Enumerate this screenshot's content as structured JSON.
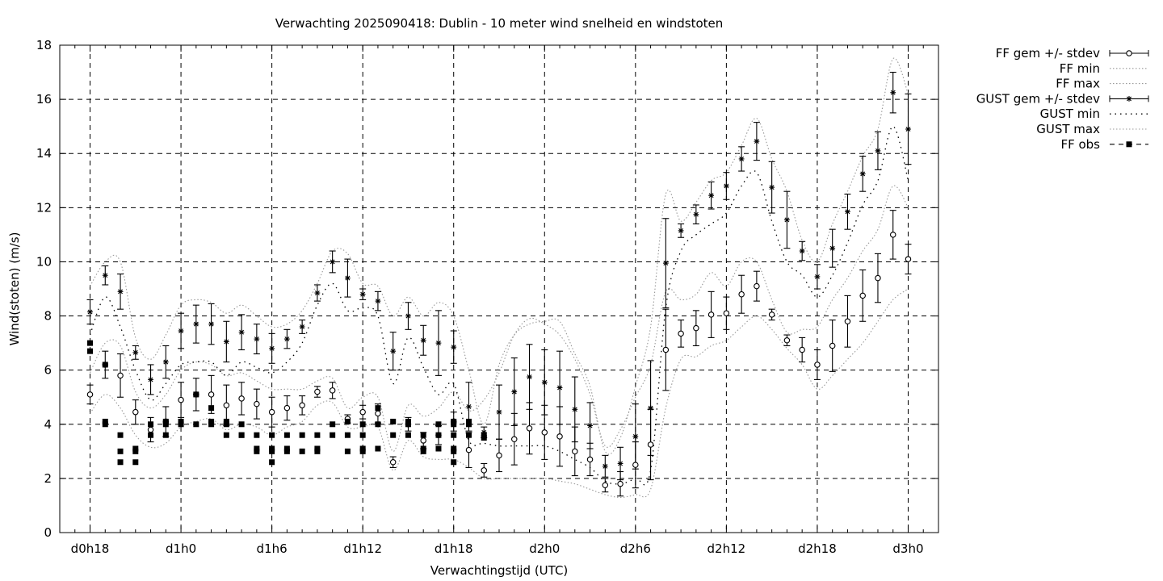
{
  "chart_data": {
    "type": "line",
    "title": "Verwachting 2025090418: Dublin - 10 meter wind snelheid en windstoten",
    "xlabel": "Verwachtingstijd (UTC)",
    "ylabel": "Wind(stoten) (m/s)",
    "xlim": [
      -2,
      56
    ],
    "ylim": [
      0,
      18
    ],
    "x_unit": "hours since d0h18",
    "x_ticks": [
      {
        "at": 0,
        "label": "d0h18"
      },
      {
        "at": 6,
        "label": "d1h0"
      },
      {
        "at": 12,
        "label": "d1h6"
      },
      {
        "at": 18,
        "label": "d1h12"
      },
      {
        "at": 24,
        "label": "d1h18"
      },
      {
        "at": 30,
        "label": "d2h0"
      },
      {
        "at": 36,
        "label": "d2h6"
      },
      {
        "at": 42,
        "label": "d2h12"
      },
      {
        "at": 48,
        "label": "d2h18"
      },
      {
        "at": 54,
        "label": "d3h0"
      }
    ],
    "y_ticks": [
      0,
      2,
      4,
      6,
      8,
      10,
      12,
      14,
      16,
      18
    ],
    "grid": true,
    "legend_position": "outside-right-top",
    "legend": [
      {
        "label": "FF gem +/- stdev",
        "key": "ff_mean"
      },
      {
        "label": "FF min",
        "key": "ff_min"
      },
      {
        "label": "FF max",
        "key": "ff_max"
      },
      {
        "label": "GUST gem +/- stdev",
        "key": "gust_mean"
      },
      {
        "label": "GUST min",
        "key": "gust_min"
      },
      {
        "label": "GUST max",
        "key": "gust_max"
      },
      {
        "label": "FF obs",
        "key": "ff_obs"
      }
    ],
    "series": {
      "x": [
        0,
        1,
        2,
        3,
        4,
        5,
        6,
        7,
        8,
        9,
        10,
        11,
        12,
        13,
        14,
        15,
        16,
        17,
        18,
        19,
        20,
        21,
        22,
        23,
        24,
        25,
        26,
        27,
        28,
        29,
        30,
        31,
        32,
        33,
        34,
        35,
        36,
        37,
        38,
        39,
        40,
        41,
        42,
        43,
        44,
        45,
        46,
        47,
        48,
        49,
        50,
        51,
        52,
        53,
        54
      ],
      "ff_mean": [
        5.1,
        6.2,
        5.8,
        4.45,
        3.8,
        4.1,
        4.9,
        5.1,
        5.1,
        4.7,
        4.95,
        4.75,
        4.45,
        4.6,
        4.7,
        5.2,
        5.25,
        4.2,
        4.45,
        4.4,
        2.6,
        4.0,
        3.4,
        3.6,
        4.1,
        3.05,
        2.3,
        2.85,
        3.45,
        3.85,
        3.7,
        3.55,
        3.0,
        2.7,
        1.75,
        1.8,
        2.5,
        3.25,
        6.75,
        7.35,
        7.55,
        8.05,
        8.1,
        8.8,
        9.1,
        8.05,
        7.1,
        6.75,
        6.2,
        6.9,
        7.8,
        8.75,
        9.4,
        11.0,
        10.1
      ],
      "ff_sd": [
        0.35,
        0.5,
        0.8,
        0.45,
        0.45,
        0.55,
        0.65,
        0.6,
        0.7,
        0.75,
        0.6,
        0.55,
        0.55,
        0.45,
        0.35,
        0.2,
        0.3,
        0.15,
        0.25,
        0.35,
        0.2,
        0.25,
        0.3,
        0.35,
        0.35,
        0.65,
        0.25,
        0.6,
        0.95,
        0.95,
        1.0,
        1.1,
        0.9,
        0.6,
        0.25,
        0.45,
        0.85,
        1.3,
        1.5,
        0.5,
        0.65,
        0.85,
        0.6,
        0.7,
        0.55,
        0.2,
        0.2,
        0.45,
        0.55,
        0.95,
        0.95,
        0.95,
        0.9,
        0.9,
        0.55
      ],
      "ff_min": [
        4.4,
        5.1,
        4.6,
        3.6,
        3.15,
        3.3,
        3.9,
        4.1,
        4.2,
        3.8,
        4.0,
        3.9,
        3.6,
        3.9,
        4.1,
        4.7,
        4.8,
        3.9,
        3.9,
        3.9,
        2.3,
        3.4,
        2.8,
        2.7,
        2.7,
        2.4,
        2.0,
        2.0,
        2.0,
        2.0,
        2.0,
        1.9,
        1.8,
        1.6,
        1.4,
        1.3,
        1.4,
        1.6,
        4.6,
        6.4,
        6.5,
        6.9,
        7.1,
        7.6,
        8.0,
        7.5,
        6.8,
        6.2,
        5.3,
        5.8,
        6.4,
        7.0,
        7.8,
        8.6,
        9.0
      ],
      "ff_max": [
        5.9,
        7.0,
        6.9,
        5.2,
        4.6,
        5.1,
        6.0,
        6.3,
        6.2,
        5.8,
        5.9,
        5.6,
        5.3,
        5.3,
        5.3,
        5.6,
        5.7,
        4.6,
        5.0,
        5.0,
        3.0,
        4.7,
        4.3,
        4.6,
        5.2,
        4.5,
        4.9,
        5.9,
        7.3,
        7.9,
        7.7,
        7.3,
        6.4,
        5.1,
        3.2,
        3.8,
        5.0,
        6.2,
        8.9,
        8.6,
        8.8,
        9.6,
        9.1,
        10.0,
        10.0,
        8.6,
        7.4,
        7.5,
        7.6,
        8.6,
        9.4,
        10.4,
        11.2,
        12.8,
        12.0
      ],
      "gust_mean": [
        8.15,
        9.5,
        8.9,
        6.65,
        5.65,
        6.3,
        7.45,
        7.7,
        7.7,
        7.05,
        7.4,
        7.15,
        6.8,
        7.15,
        7.6,
        8.85,
        10.0,
        9.4,
        8.8,
        8.55,
        6.7,
        8.0,
        7.1,
        7.0,
        6.85,
        4.65,
        3.7,
        4.45,
        5.2,
        5.75,
        5.55,
        5.35,
        4.55,
        3.95,
        2.45,
        2.55,
        3.55,
        4.6,
        9.95,
        11.15,
        11.75,
        12.45,
        12.8,
        13.8,
        14.45,
        12.75,
        11.55,
        10.4,
        9.45,
        10.5,
        11.85,
        13.25,
        14.1,
        16.25,
        14.9
      ],
      "gust_sd": [
        0.45,
        0.35,
        0.65,
        0.25,
        0.55,
        0.6,
        0.65,
        0.7,
        0.75,
        0.75,
        0.65,
        0.55,
        0.55,
        0.35,
        0.25,
        0.3,
        0.4,
        0.7,
        0.2,
        0.35,
        0.7,
        0.5,
        0.55,
        1.2,
        0.6,
        0.9,
        0.2,
        1.0,
        1.25,
        1.2,
        1.2,
        1.35,
        1.2,
        0.85,
        0.4,
        0.6,
        1.2,
        1.75,
        1.65,
        0.25,
        0.35,
        0.5,
        0.5,
        0.45,
        0.7,
        0.95,
        1.05,
        0.35,
        0.45,
        0.7,
        0.65,
        0.65,
        0.7,
        0.75,
        1.3
      ],
      "gust_min": [
        7.3,
        8.7,
        7.6,
        6.0,
        4.9,
        5.5,
        6.2,
        6.3,
        6.3,
        5.8,
        6.3,
        6.1,
        5.9,
        6.3,
        7.0,
        8.4,
        9.2,
        8.2,
        8.3,
        8.0,
        5.5,
        7.2,
        6.1,
        5.1,
        5.5,
        3.4,
        3.3,
        3.2,
        3.2,
        3.2,
        3.2,
        3.0,
        2.7,
        2.4,
        1.9,
        1.8,
        2.0,
        2.3,
        8.3,
        10.4,
        11.0,
        11.4,
        11.8,
        12.8,
        13.3,
        11.5,
        10.0,
        9.5,
        8.7,
        9.5,
        10.7,
        12.1,
        13.0,
        15.0,
        13.0
      ],
      "gust_max": [
        9.1,
        10.0,
        10.0,
        7.2,
        6.4,
        7.3,
        8.4,
        8.6,
        8.5,
        8.1,
        8.4,
        8.0,
        7.6,
        7.7,
        8.2,
        9.2,
        10.4,
        10.3,
        9.2,
        9.1,
        8.0,
        8.7,
        8.0,
        8.5,
        8.0,
        6.0,
        4.0,
        6.2,
        7.3,
        7.7,
        7.8,
        7.8,
        6.6,
        5.4,
        3.0,
        3.5,
        5.4,
        7.6,
        12.5,
        11.5,
        12.2,
        13.0,
        13.3,
        14.3,
        15.3,
        13.8,
        12.6,
        10.8,
        10.0,
        11.4,
        12.6,
        13.9,
        14.9,
        17.5,
        16.2
      ]
    },
    "ff_obs": {
      "x": [
        0,
        0,
        1,
        1,
        1,
        2,
        2,
        2,
        3,
        3,
        3,
        4,
        4,
        5,
        5,
        5,
        6,
        6,
        7,
        7,
        8,
        8,
        8,
        9,
        9,
        9,
        10,
        10,
        10,
        11,
        11,
        11,
        12,
        12,
        12,
        12,
        13,
        13,
        13,
        14,
        14,
        15,
        15,
        15,
        16,
        16,
        17,
        17,
        17,
        18,
        18,
        18,
        18,
        19,
        19,
        19,
        20,
        20,
        21,
        21,
        21,
        22,
        22,
        22,
        23,
        23,
        23,
        24,
        24,
        24,
        24,
        24,
        24,
        25,
        25,
        25,
        26,
        26
      ],
      "y": [
        7.0,
        6.7,
        6.2,
        4.1,
        4.0,
        3.6,
        3.0,
        2.6,
        3.1,
        3.0,
        2.6,
        4.0,
        3.6,
        4.1,
        4.0,
        3.6,
        4.1,
        4.0,
        5.1,
        4.0,
        4.6,
        4.1,
        4.0,
        4.1,
        4.0,
        3.6,
        4.0,
        3.6,
        3.6,
        3.6,
        3.1,
        3.0,
        3.6,
        3.1,
        3.0,
        2.6,
        3.6,
        3.1,
        3.0,
        3.6,
        3.0,
        3.6,
        3.1,
        3.0,
        4.0,
        3.6,
        4.1,
        3.6,
        3.0,
        4.0,
        3.6,
        3.1,
        3.0,
        4.6,
        4.0,
        3.1,
        4.1,
        3.6,
        4.1,
        4.0,
        3.6,
        3.6,
        3.1,
        3.0,
        4.0,
        3.6,
        3.1,
        4.1,
        4.0,
        3.6,
        3.1,
        3.0,
        2.6,
        4.1,
        4.0,
        3.6,
        3.6,
        3.5
      ]
    }
  }
}
